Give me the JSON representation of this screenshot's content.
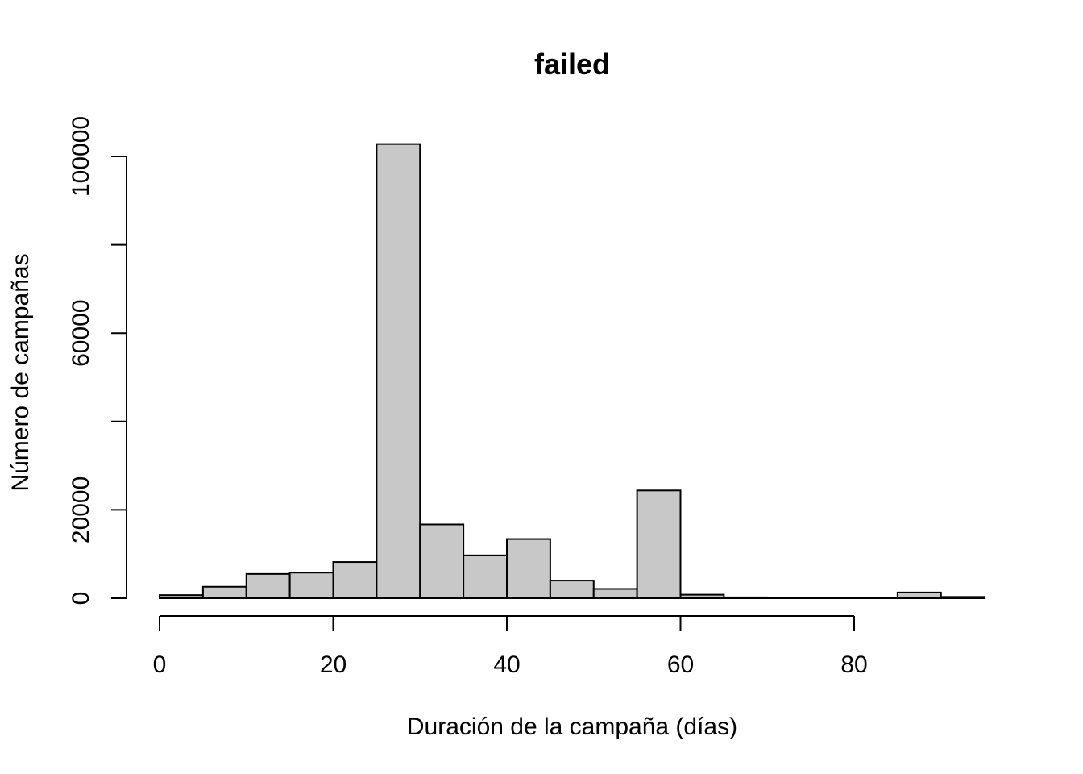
{
  "chart_data": {
    "type": "bar",
    "title": "failed",
    "xlabel": "Duración de la campaña (días)",
    "ylabel": "Número de campañas",
    "bin_edges": [
      0,
      5,
      10,
      15,
      20,
      25,
      30,
      35,
      40,
      45,
      50,
      55,
      60,
      65,
      70,
      75,
      80,
      85,
      90,
      95
    ],
    "values": [
      700,
      2600,
      5500,
      5800,
      8200,
      102800,
      16700,
      9700,
      13400,
      4000,
      2100,
      24400,
      800,
      200,
      150,
      100,
      100,
      1300,
      300
    ],
    "x_ticks": [
      0,
      20,
      40,
      60,
      80
    ],
    "x_tick_labels": [
      "0",
      "20",
      "40",
      "60",
      "80"
    ],
    "xlim": [
      0,
      80
    ],
    "y_ticks": [
      0,
      20000,
      40000,
      60000,
      80000,
      100000
    ],
    "y_tick_labels": [
      "0",
      "20000",
      "",
      "60000",
      "",
      "100000"
    ],
    "ylim": [
      0,
      100000
    ],
    "grid": false,
    "colors": {
      "bar_fill": "#c8c8c8",
      "bar_stroke": "#000000"
    }
  }
}
